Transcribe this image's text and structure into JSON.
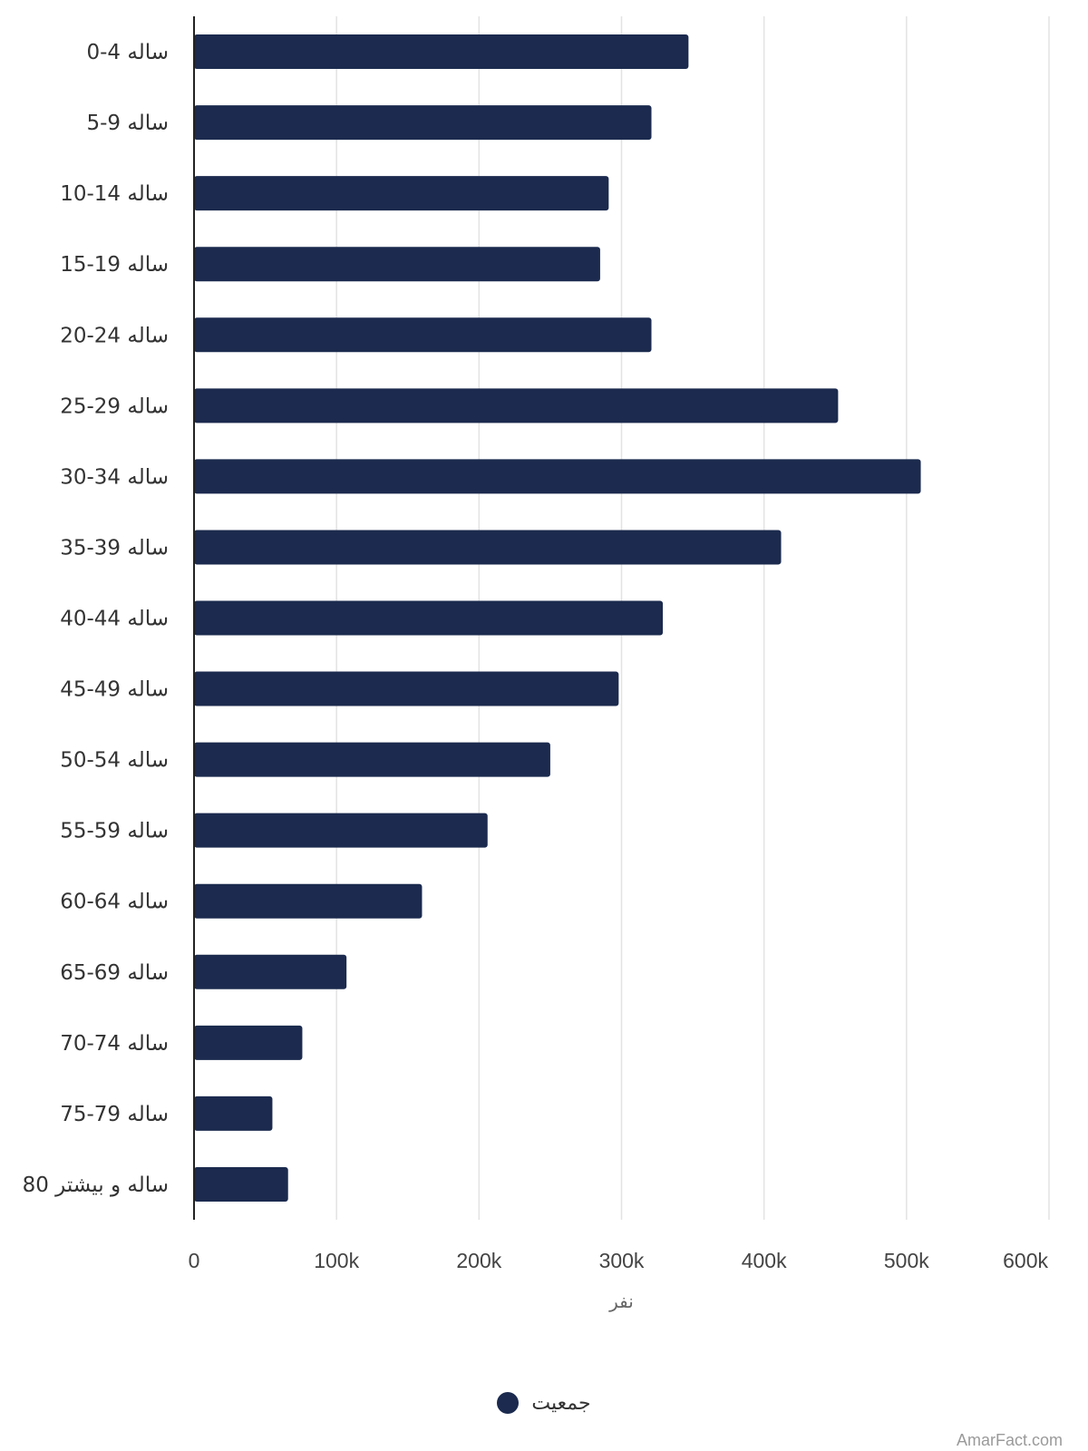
{
  "chart_data": {
    "type": "bar",
    "orientation": "horizontal",
    "categories": [
      "0-4 ساله",
      "5-9 ساله",
      "10-14 ساله",
      "15-19 ساله",
      "20-24 ساله",
      "25-29 ساله",
      "30-34 ساله",
      "35-39 ساله",
      "40-44 ساله",
      "45-49 ساله",
      "50-54 ساله",
      "55-59 ساله",
      "60-64 ساله",
      "65-69 ساله",
      "70-74 ساله",
      "75-79 ساله",
      "80 ساله و بیشتر"
    ],
    "series": [
      {
        "name": "جمعیت",
        "color": "#1b2a4e",
        "values": [
          347000,
          321000,
          291000,
          285000,
          321000,
          452000,
          510000,
          412000,
          329000,
          298000,
          250000,
          206000,
          160000,
          107000,
          76000,
          55000,
          66000
        ]
      }
    ],
    "xlim": [
      0,
      600000
    ],
    "xticks": [
      {
        "value": 0,
        "label": "0"
      },
      {
        "value": 100000,
        "label": "100k"
      },
      {
        "value": 200000,
        "label": "200k"
      },
      {
        "value": 300000,
        "label": "300k"
      },
      {
        "value": 400000,
        "label": "400k"
      },
      {
        "value": 500000,
        "label": "500k"
      },
      {
        "value": 600000,
        "label": "600k"
      }
    ],
    "xlabel": "نفر",
    "ylabel": "",
    "title": "",
    "grid": true,
    "legend_position": "bottom"
  },
  "watermark": "AmarFact.com"
}
